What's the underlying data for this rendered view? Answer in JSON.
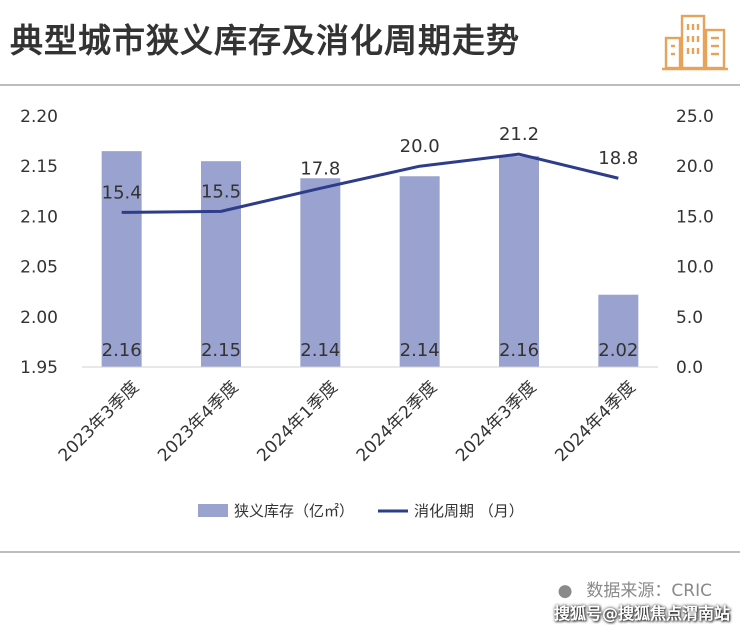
{
  "title": "典型城市狭义库存及消化周期走势",
  "icon": "city-buildings-icon",
  "colors": {
    "bar": "#9aa3cf",
    "line": "#2e3d8a",
    "text": "#333333",
    "logo": "#e8a35a"
  },
  "chart_data": {
    "type": "bar",
    "categories": [
      "2023年3季度",
      "2023年4季度",
      "2024年1季度",
      "2024年2季度",
      "2024年3季度",
      "2024年4季度"
    ],
    "series": [
      {
        "name": "狭义库存（亿㎡）",
        "type": "bar",
        "axis": "left",
        "values": [
          2.165,
          2.155,
          2.138,
          2.14,
          2.16,
          2.022
        ],
        "labels": [
          "2.16",
          "2.15",
          "2.14",
          "2.14",
          "2.16",
          "2.02"
        ]
      },
      {
        "name": "消化周期 （月）",
        "type": "line",
        "axis": "right",
        "values": [
          15.4,
          15.5,
          17.8,
          20.0,
          21.2,
          18.8
        ],
        "labels": [
          "15.4",
          "15.5",
          "17.8",
          "20.0",
          "21.2",
          "18.8"
        ]
      }
    ],
    "y_left": {
      "min": 1.95,
      "max": 2.2,
      "ticks": [
        "2.20",
        "2.15",
        "2.10",
        "2.05",
        "2.00",
        "1.95"
      ]
    },
    "y_right": {
      "min": 0,
      "max": 25,
      "ticks": [
        "25.0",
        "20.0",
        "15.0",
        "10.0",
        "5.0",
        "0.0"
      ]
    },
    "grid": false,
    "legend_position": "bottom"
  },
  "source": "数据来源：CRIC",
  "watermark": "搜狐号@搜狐焦点渭南站"
}
